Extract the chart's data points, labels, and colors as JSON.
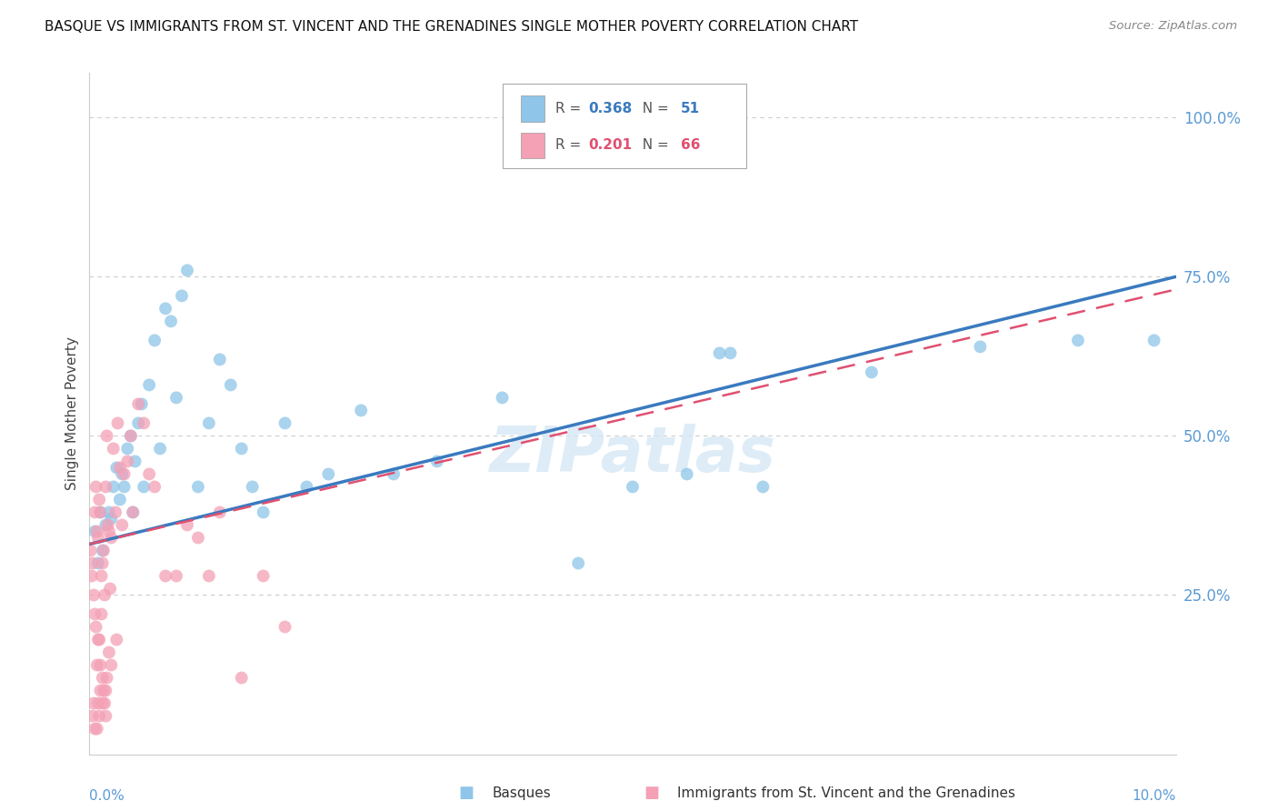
{
  "title": "BASQUE VS IMMIGRANTS FROM ST. VINCENT AND THE GRENADINES SINGLE MOTHER POVERTY CORRELATION CHART",
  "source": "Source: ZipAtlas.com",
  "ylabel": "Single Mother Poverty",
  "legend_label1": "Basques",
  "legend_label2": "Immigrants from St. Vincent and the Grenadines",
  "R1": 0.368,
  "N1": 51,
  "R2": 0.201,
  "N2": 66,
  "color_blue": "#8ec5e8",
  "color_pink": "#f4a0b5",
  "color_blue_line": "#3a7abf",
  "color_pink_line": "#e05070",
  "color_axis_labels": "#5b9bd5",
  "watermark_text": "ZIPatlas",
  "blue_line_start_y": 0.33,
  "blue_line_end_y": 0.75,
  "pink_line_start_y": 0.33,
  "pink_line_end_y": 0.73,
  "blue_x": [
    0.05,
    0.08,
    0.1,
    0.12,
    0.15,
    0.18,
    0.2,
    0.22,
    0.25,
    0.28,
    0.3,
    0.32,
    0.35,
    0.38,
    0.4,
    0.42,
    0.45,
    0.48,
    0.5,
    0.55,
    0.6,
    0.65,
    0.7,
    0.75,
    0.8,
    0.85,
    0.9,
    1.0,
    1.1,
    1.2,
    1.3,
    1.4,
    1.5,
    1.6,
    1.8,
    2.0,
    2.2,
    2.5,
    2.8,
    3.2,
    3.8,
    4.5,
    5.0,
    5.5,
    5.8,
    5.9,
    6.2,
    7.2,
    8.2,
    9.1,
    9.8
  ],
  "blue_y": [
    0.35,
    0.3,
    0.38,
    0.32,
    0.36,
    0.38,
    0.37,
    0.42,
    0.45,
    0.4,
    0.44,
    0.42,
    0.48,
    0.5,
    0.38,
    0.46,
    0.52,
    0.55,
    0.42,
    0.58,
    0.65,
    0.48,
    0.7,
    0.68,
    0.56,
    0.72,
    0.76,
    0.42,
    0.52,
    0.62,
    0.58,
    0.48,
    0.42,
    0.38,
    0.52,
    0.42,
    0.44,
    0.54,
    0.44,
    0.46,
    0.56,
    0.3,
    0.42,
    0.44,
    0.63,
    0.63,
    0.42,
    0.6,
    0.64,
    0.65,
    0.65
  ],
  "pink_x": [
    0.01,
    0.02,
    0.03,
    0.04,
    0.05,
    0.06,
    0.07,
    0.08,
    0.09,
    0.1,
    0.11,
    0.12,
    0.13,
    0.14,
    0.15,
    0.16,
    0.17,
    0.18,
    0.19,
    0.2,
    0.22,
    0.24,
    0.26,
    0.28,
    0.3,
    0.32,
    0.35,
    0.38,
    0.4,
    0.45,
    0.5,
    0.55,
    0.6,
    0.7,
    0.8,
    0.9,
    1.0,
    1.1,
    1.2,
    1.4,
    1.6,
    1.8,
    0.05,
    0.08,
    0.1,
    0.12,
    0.15,
    0.18,
    0.2,
    0.25,
    0.06,
    0.07,
    0.09,
    0.11,
    0.13,
    0.16,
    0.04,
    0.03,
    0.08,
    0.1,
    0.12,
    0.15,
    0.05,
    0.07,
    0.09,
    0.14
  ],
  "pink_y": [
    0.32,
    0.28,
    0.3,
    0.25,
    0.38,
    0.42,
    0.35,
    0.34,
    0.4,
    0.38,
    0.28,
    0.3,
    0.32,
    0.25,
    0.42,
    0.5,
    0.36,
    0.35,
    0.26,
    0.34,
    0.48,
    0.38,
    0.52,
    0.45,
    0.36,
    0.44,
    0.46,
    0.5,
    0.38,
    0.55,
    0.52,
    0.44,
    0.42,
    0.28,
    0.28,
    0.36,
    0.34,
    0.28,
    0.38,
    0.12,
    0.28,
    0.2,
    0.22,
    0.18,
    0.14,
    0.12,
    0.1,
    0.16,
    0.14,
    0.18,
    0.2,
    0.14,
    0.18,
    0.22,
    0.1,
    0.12,
    0.08,
    0.06,
    0.08,
    0.1,
    0.08,
    0.06,
    0.04,
    0.04,
    0.06,
    0.08
  ],
  "xmin": 0.0,
  "xmax": 10.0,
  "ymin": 0.0,
  "ymax": 1.07,
  "ytick_vals": [
    0.25,
    0.5,
    0.75,
    1.0
  ],
  "ytick_labels": [
    "25.0%",
    "50.0%",
    "75.0%",
    "100.0%"
  ]
}
